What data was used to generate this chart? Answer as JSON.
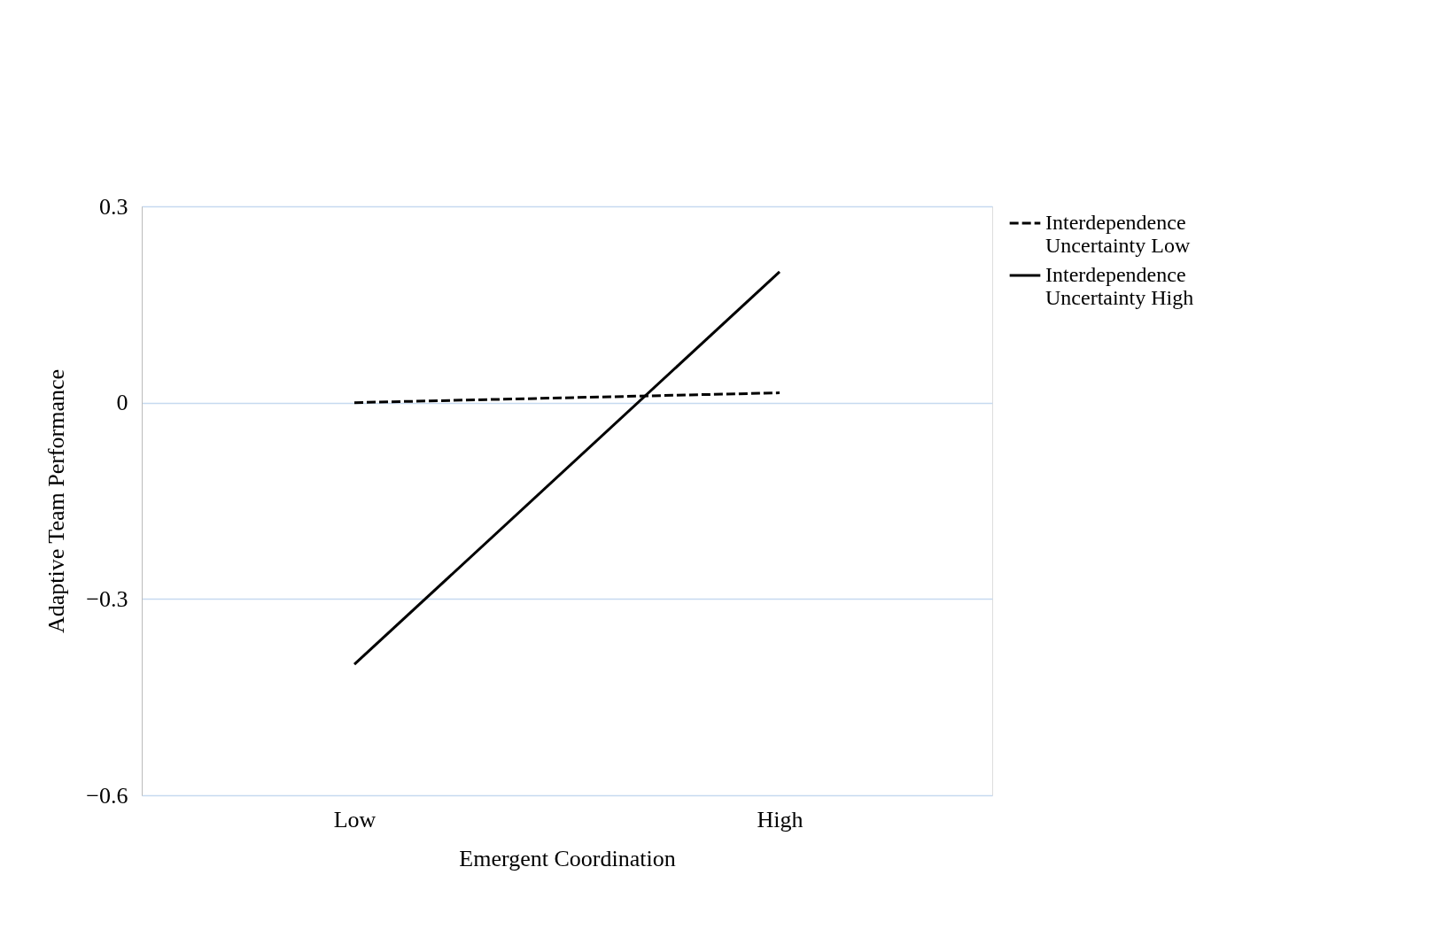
{
  "chart_data": {
    "type": "line",
    "xlabel": "Emergent Coordination",
    "ylabel": "Adaptive Team Performance",
    "categories": [
      "Low",
      "High"
    ],
    "series": [
      {
        "name": "Interdependence\nUncertainty Low",
        "color": "#000000",
        "line_style": "dashed",
        "values": [
          0.0,
          0.015
        ]
      },
      {
        "name": "Interdependence\nUncertainty High",
        "color": "#000000",
        "line_style": "solid",
        "values": [
          -0.4,
          0.2
        ]
      }
    ],
    "ylim": [
      -0.6,
      0.3
    ],
    "yticks": [
      -0.6,
      -0.3,
      0,
      0.3
    ],
    "grid": "y",
    "legend": "right",
    "marker": "none"
  }
}
